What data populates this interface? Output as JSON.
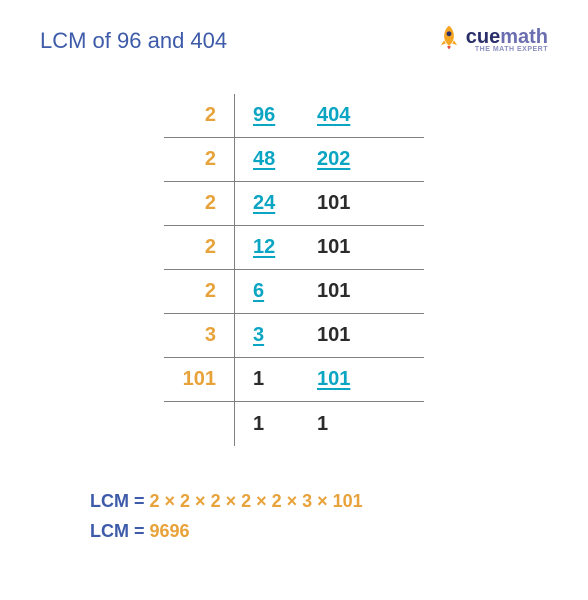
{
  "title": "LCM of 96 and 404",
  "logo": {
    "cue": "cue",
    "math": "math",
    "tagline": "THE MATH EXPERT"
  },
  "colors": {
    "title": "#3d5ba9",
    "divisor": "#e8a23a",
    "value_divisible": "#0aa5c2",
    "value_plain": "#2b2b2b",
    "rule": "#808080",
    "lcm_label": "#3d5ba9",
    "expr": "#e8a23a",
    "result_num": "#e8a23a"
  },
  "ladder": {
    "rows": [
      {
        "divisor": "2",
        "a": "96",
        "b": "404",
        "a_div": true,
        "b_div": true
      },
      {
        "divisor": "2",
        "a": "48",
        "b": "202",
        "a_div": true,
        "b_div": true
      },
      {
        "divisor": "2",
        "a": "24",
        "b": "101",
        "a_div": true,
        "b_div": false
      },
      {
        "divisor": "2",
        "a": "12",
        "b": "101",
        "a_div": true,
        "b_div": false
      },
      {
        "divisor": "2",
        "a": "6",
        "b": "101",
        "a_div": true,
        "b_div": false
      },
      {
        "divisor": "3",
        "a": "3",
        "b": "101",
        "a_div": true,
        "b_div": false
      },
      {
        "divisor": "101",
        "a": "1",
        "b": "101",
        "a_div": false,
        "b_div": true
      },
      {
        "divisor": "",
        "a": "1",
        "b": "1",
        "a_div": false,
        "b_div": false
      }
    ]
  },
  "result": {
    "label1": "LCM",
    "eq": " = ",
    "expression": "2 × 2 × 2 × 2 × 2 × 3 × 101",
    "label2": "LCM",
    "value": "9696"
  }
}
